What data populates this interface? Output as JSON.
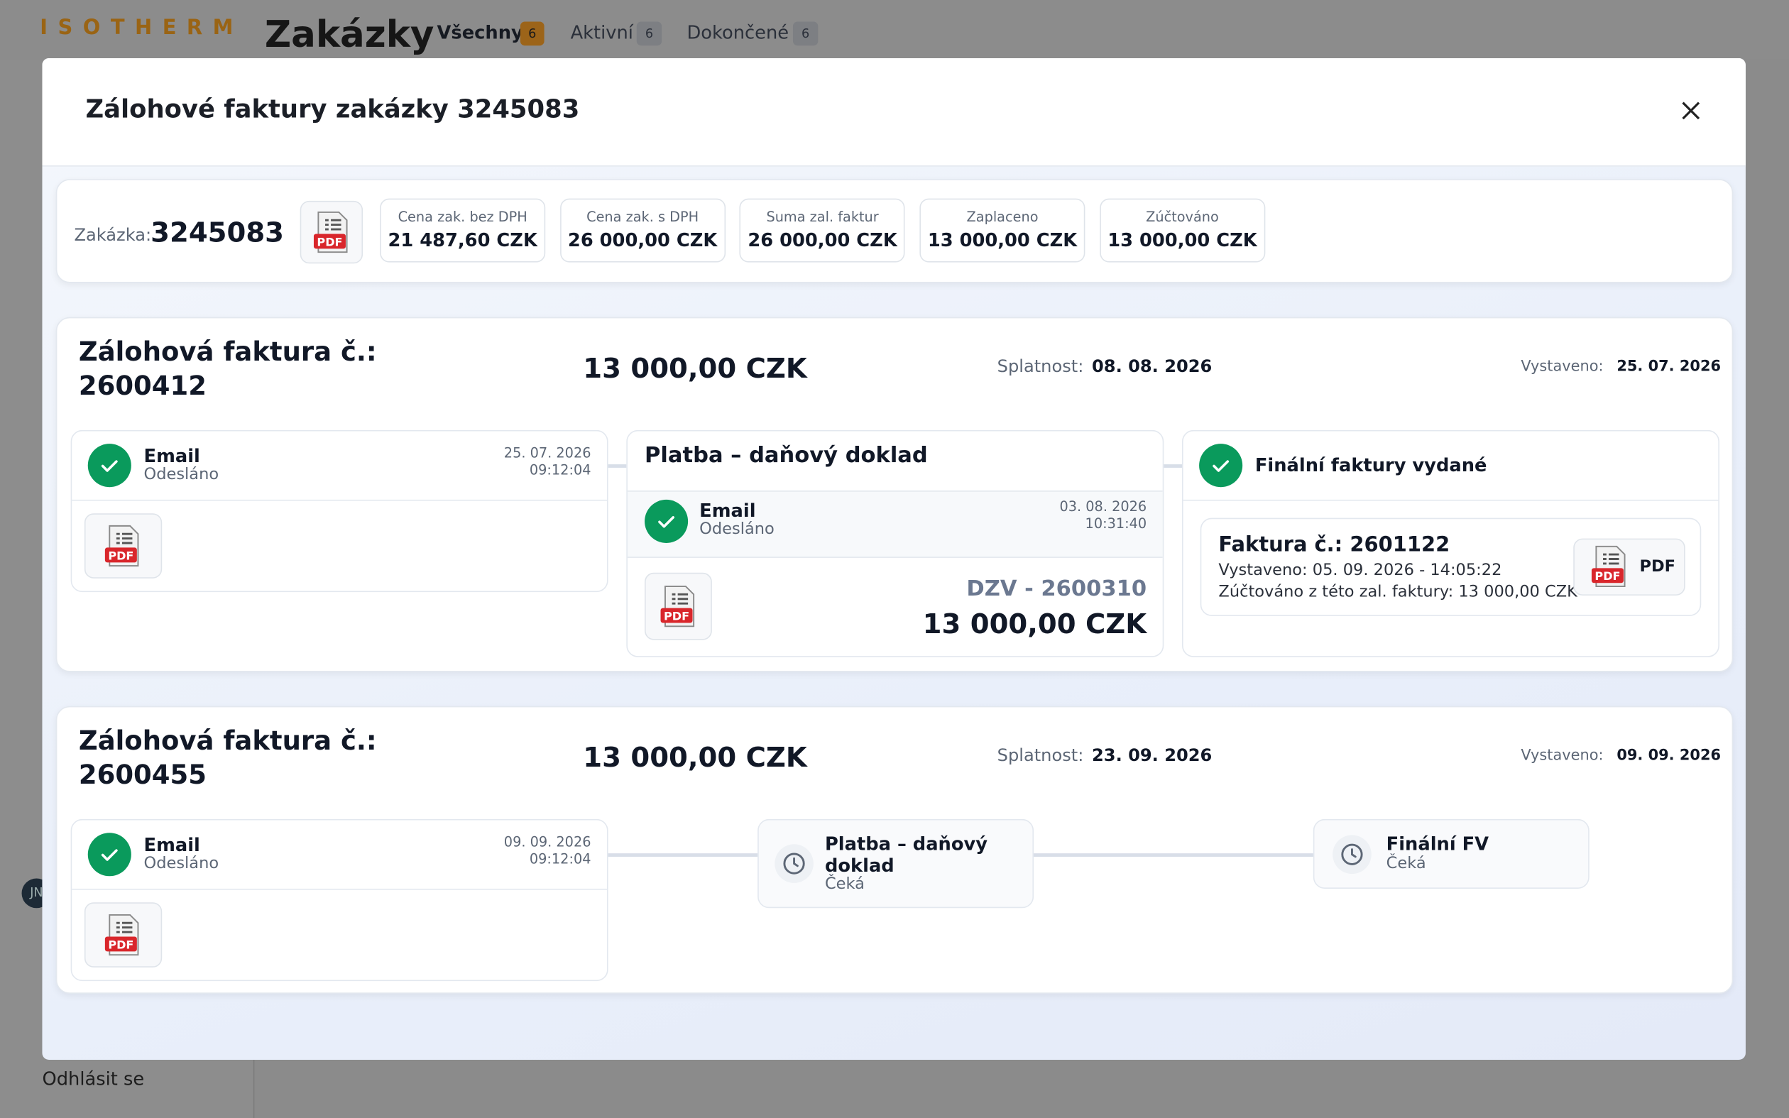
{
  "header": {
    "logo": "ISOTHERM",
    "title": "Zakázky",
    "tabs": [
      {
        "label": "Všechny",
        "count": 6
      },
      {
        "label": "Aktivní",
        "count": 6
      },
      {
        "label": "Dokončené",
        "count": 6
      }
    ]
  },
  "sidebar": {
    "user_initials": "JN",
    "logout": "Odhlásit se"
  },
  "pdf_icon_label": "PDF",
  "modal": {
    "title": "Zálohové faktury zakázky 3245083",
    "summary": {
      "order_label": "Zakázka:",
      "order_number": "3245083",
      "stats": [
        {
          "label": "Cena zak. bez DPH",
          "value": "21 487,60 CZK"
        },
        {
          "label": "Cena zak. s DPH",
          "value": "26 000,00 CZK"
        },
        {
          "label": "Suma zal. faktur",
          "value": "26 000,00 CZK"
        },
        {
          "label": "Zaplaceno",
          "value": "13 000,00 CZK"
        },
        {
          "label": "Zúčtováno",
          "value": "13 000,00 CZK"
        }
      ]
    },
    "invoices": [
      {
        "title": "Zálohová faktura č.:",
        "number": "2600412",
        "amount": "13 000,00 CZK",
        "due_label": "Splatnost:",
        "due": "08. 08. 2026",
        "issued_label": "Vystaveno:",
        "issued": "25. 07. 2026",
        "email": {
          "title": "Email",
          "status": "Odesláno",
          "date": "25. 07. 2026",
          "time": "09:12:04"
        },
        "payment": {
          "heading": "Platba – daňový doklad",
          "email": {
            "title": "Email",
            "status": "Odesláno",
            "date": "03. 08. 2026",
            "time": "10:31:40"
          },
          "document": "DZV - 2600310",
          "amount": "13 000,00 CZK"
        },
        "final": {
          "heading": "Finální faktury vydané",
          "invoice": "Faktura č.: 2601122",
          "issued": "Vystaveno: 05. 09. 2026 - 14:05:22",
          "accounted": "Zúčtováno z této zal. faktury: 13 000,00 CZK",
          "button": "PDF"
        }
      },
      {
        "title": "Zálohová faktura č.:",
        "number": "2600455",
        "amount": "13 000,00 CZK",
        "due_label": "Splatnost:",
        "due": "23. 09. 2026",
        "issued_label": "Vystaveno:",
        "issued": "09. 09. 2026",
        "email": {
          "title": "Email",
          "status": "Odesláno",
          "date": "09. 09. 2026",
          "time": "09:12:04"
        },
        "payment": {
          "heading": "Platba – daňový doklad",
          "status": "Čeká"
        },
        "final": {
          "heading": "Finální FV",
          "status": "Čeká"
        }
      }
    ]
  }
}
